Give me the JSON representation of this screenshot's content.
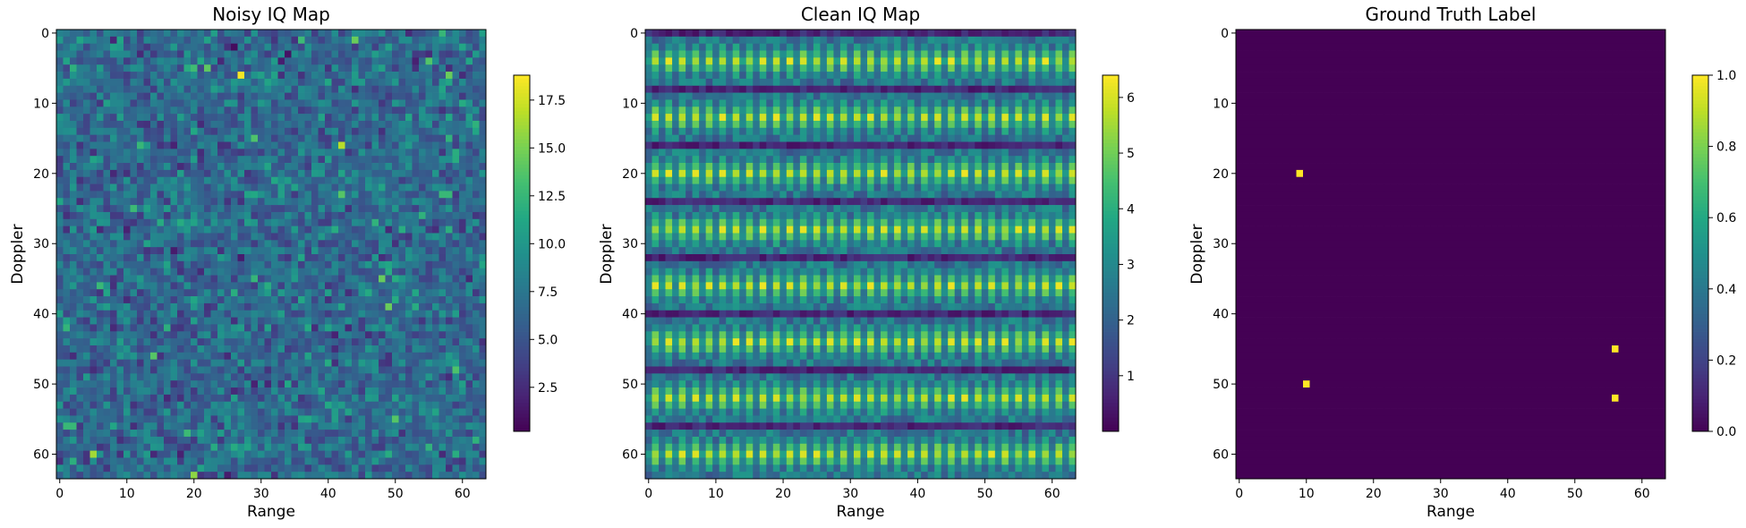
{
  "chart_data": [
    {
      "type": "heatmap",
      "title": "Noisy IQ Map",
      "xlabel": "Range",
      "ylabel": "Doppler",
      "grid_size": [
        64,
        64
      ],
      "xticks": [
        0,
        10,
        20,
        30,
        40,
        50,
        60
      ],
      "yticks": [
        0,
        10,
        20,
        30,
        40,
        50,
        60
      ],
      "colormap": "viridis",
      "color_range": [
        0.2,
        18.8
      ],
      "colorbar_ticks": [
        2.5,
        5.0,
        7.5,
        10.0,
        12.5,
        15.0,
        17.5
      ],
      "pattern": "random noise, mean about 6.5, with isolated bright cells near (27,6), (42,16), (5,60) and (20,63)",
      "grid": false
    },
    {
      "type": "heatmap",
      "title": "Clean IQ Map",
      "xlabel": "Range",
      "ylabel": "Doppler",
      "grid_size": [
        64,
        64
      ],
      "xticks": [
        0,
        10,
        20,
        30,
        40,
        50,
        60
      ],
      "yticks": [
        0,
        10,
        20,
        30,
        40,
        50,
        60
      ],
      "colormap": "viridis",
      "color_range": [
        0.0,
        6.4
      ],
      "colorbar_ticks": [
        1,
        2,
        3,
        4,
        5,
        6
      ],
      "pattern": "periodic interference bands: rows repeat every 7-8 Doppler bins, columns alternate every 2 Range bins, with dark separator rows",
      "grid": false
    },
    {
      "type": "heatmap",
      "title": "Ground Truth Label",
      "xlabel": "Range",
      "ylabel": "Doppler",
      "grid_size": [
        64,
        64
      ],
      "xticks": [
        0,
        10,
        20,
        30,
        40,
        50,
        60
      ],
      "yticks": [
        0,
        10,
        20,
        30,
        40,
        50,
        60
      ],
      "colormap": "viridis",
      "color_range": [
        0.0,
        1.0
      ],
      "colorbar_ticks": [
        0.0,
        0.2,
        0.4,
        0.6,
        0.8,
        1.0
      ],
      "background_value": 0,
      "targets": [
        {
          "range": 9,
          "doppler": 20,
          "value": 1
        },
        {
          "range": 10,
          "doppler": 50,
          "value": 1
        },
        {
          "range": 56,
          "doppler": 45,
          "value": 1
        },
        {
          "range": 56,
          "doppler": 52,
          "value": 1
        }
      ],
      "grid": false
    }
  ]
}
